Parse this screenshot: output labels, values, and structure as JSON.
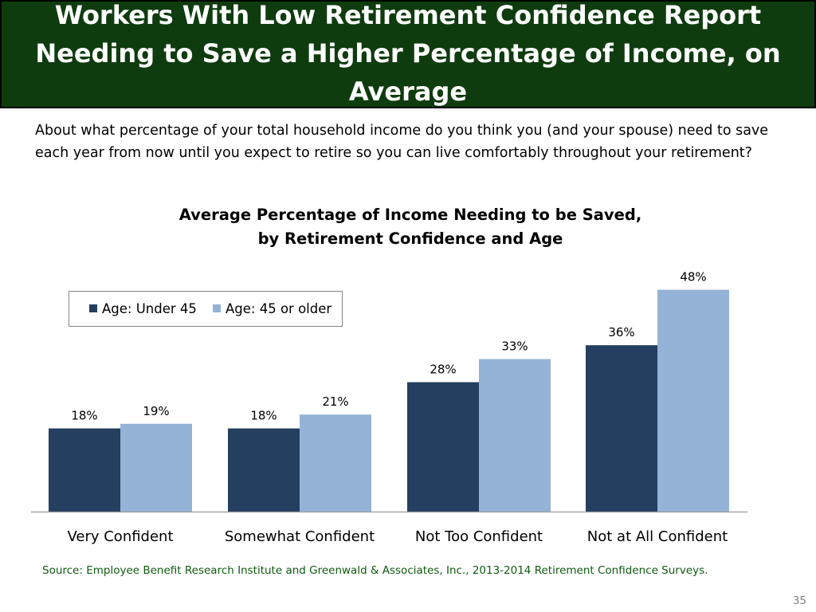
{
  "header": {
    "title": "Workers With Low Retirement Confidence Report Needing to Save a Higher Percentage of Income, on Average"
  },
  "question": "About what percentage of your total household income do you think you (and your spouse) need to save each year from now until you expect to retire so you can live comfortably throughout your retirement?",
  "colors": {
    "header_bg": "#0f3c0f",
    "series_under_45": "#243f60",
    "series_45_older": "#95b3d7",
    "source_text": "#0f5a0f"
  },
  "chart_data": {
    "type": "bar",
    "title": "Average Percentage of Income Needing to be Saved, by Retirement Confidence and Age",
    "categories": [
      "Very Confident",
      "Somewhat Confident",
      "Not Too Confident",
      "Not at All Confident"
    ],
    "series": [
      {
        "name": "Age: Under 45",
        "values": [
          18,
          18,
          28,
          36
        ],
        "labels": [
          "18%",
          "18%",
          "28%",
          "36%"
        ]
      },
      {
        "name": "Age: 45 or older",
        "values": [
          19,
          21,
          33,
          48
        ],
        "labels": [
          "19%",
          "21%",
          "33%",
          "48%"
        ]
      }
    ],
    "ylim": [
      0,
      55
    ],
    "legend_position": "top-left",
    "grid": false
  },
  "source": "Source:  Employee Benefit Research Institute and Greenwald & Associates, Inc., 2013-2014 Retirement Confidence Surveys.",
  "page_number": "35"
}
